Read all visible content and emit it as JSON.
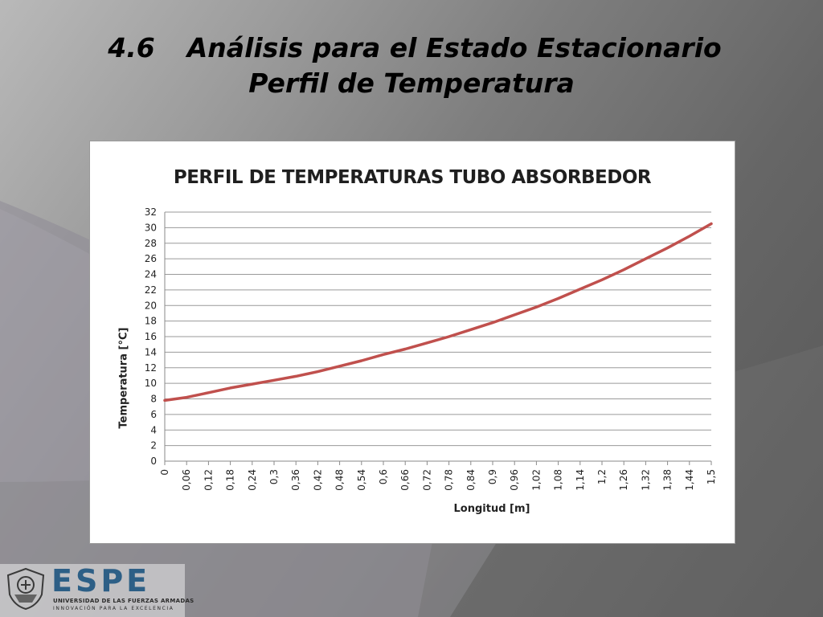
{
  "slide": {
    "title_number": "4.6",
    "title_main": "Análisis para el Estado Estacionario",
    "title_sub": "Perfil de Temperatura"
  },
  "logo": {
    "brand": "ESPE",
    "university": "UNIVERSIDAD DE LAS FUERZAS ARMADAS",
    "motto": "INNOVACIÓN PARA LA EXCELENCIA"
  },
  "chart_data": {
    "type": "line",
    "title": "PERFIL DE TEMPERATURAS TUBO ABSORBEDOR",
    "xlabel": "Longitud [m]",
    "ylabel": "Temperatura [°C]",
    "ylim": [
      0,
      32
    ],
    "yticks": [
      "0",
      "2",
      "4",
      "6",
      "8",
      "10",
      "12",
      "14",
      "16",
      "18",
      "20",
      "22",
      "24",
      "26",
      "28",
      "30",
      "32"
    ],
    "xticks": [
      "0",
      "0,06",
      "0,12",
      "0,18",
      "0,24",
      "0,3",
      "0,36",
      "0,42",
      "0,48",
      "0,54",
      "0,6",
      "0,66",
      "0,72",
      "0,78",
      "0,84",
      "0,9",
      "0,96",
      "1,02",
      "1,08",
      "1,14",
      "1,2",
      "1,26",
      "1,32",
      "1,38",
      "1,44",
      "1,5"
    ],
    "grid": true,
    "line_color": "#c0504d",
    "series": [
      {
        "x": [
          0,
          0.06,
          0.12,
          0.18,
          0.24,
          0.3,
          0.36,
          0.42,
          0.48,
          0.54,
          0.6,
          0.66,
          0.72,
          0.78,
          0.84,
          0.9,
          0.96,
          1.02,
          1.08,
          1.14,
          1.2,
          1.26,
          1.32,
          1.38,
          1.44,
          1.5
        ],
        "values": [
          7.8,
          8.2,
          8.8,
          9.4,
          9.9,
          10.4,
          10.9,
          11.5,
          12.2,
          12.9,
          13.7,
          14.4,
          15.2,
          16.0,
          16.9,
          17.8,
          18.8,
          19.8,
          20.9,
          22.1,
          23.3,
          24.6,
          26.0,
          27.4,
          28.9,
          30.5
        ]
      }
    ]
  }
}
